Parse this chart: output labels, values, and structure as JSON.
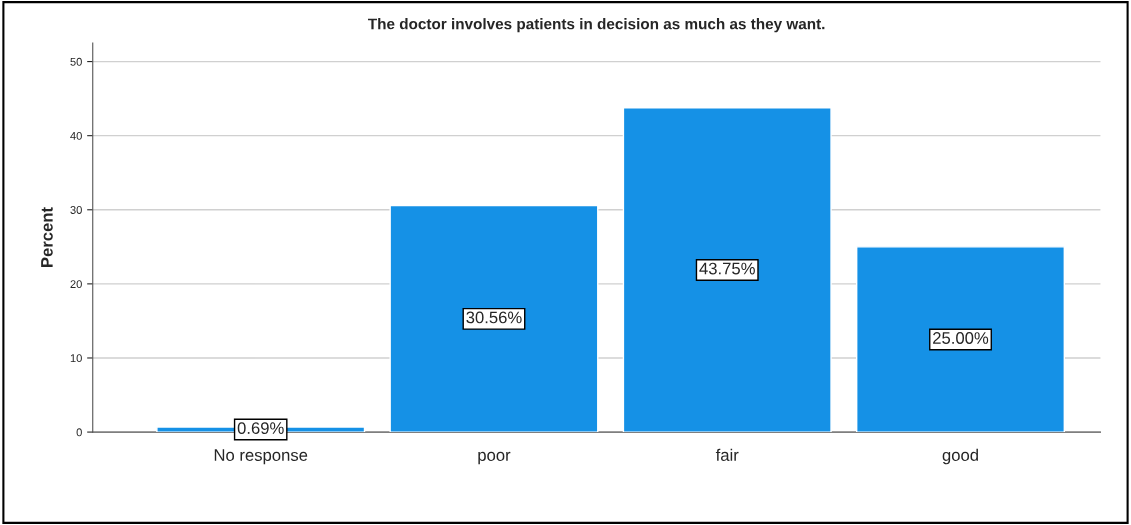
{
  "chart_data": {
    "type": "bar",
    "title": "The doctor involves patients in decision as much as they want.",
    "ylabel": "Percent",
    "categories": [
      "No response",
      "poor",
      "fair",
      "good"
    ],
    "values": [
      0.69,
      30.56,
      43.75,
      25.0
    ],
    "value_labels": [
      "0.69%",
      "30.56%",
      "43.75%",
      "25.00%"
    ],
    "color": "#1591e6",
    "ylim": [
      0,
      52.5
    ],
    "yticks": [
      0,
      10,
      20,
      30,
      40,
      50
    ],
    "grid": "y"
  }
}
